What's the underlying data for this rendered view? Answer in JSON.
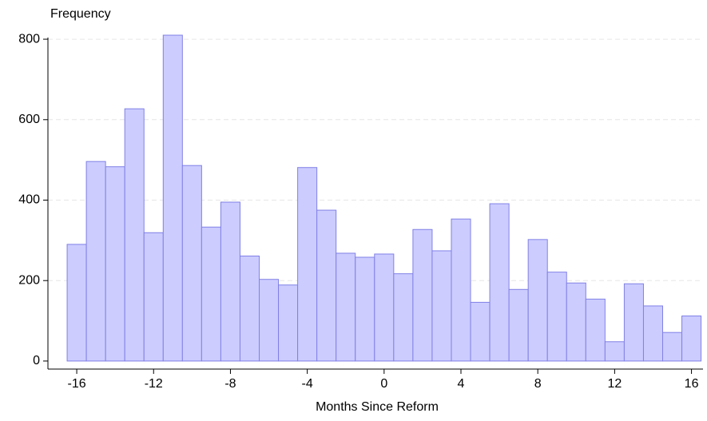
{
  "chart_data": {
    "type": "histogram",
    "ylabel": "Frequency",
    "xlabel": "Months Since Reform",
    "bins": [
      -16.5,
      -15.5,
      -14.5,
      -13.5,
      -12.5,
      -11.5,
      -10.5,
      -9.5,
      -8.5,
      -7.5,
      -6.5,
      -5.5,
      -4.5,
      -3.5,
      -2.5,
      -1.5,
      -0.5,
      0.5,
      1.5,
      2.5,
      3.5,
      4.5,
      5.5,
      6.5,
      7.5,
      8.5,
      9.5,
      10.5,
      11.5,
      12.5,
      13.5,
      14.5,
      15.5,
      16.5
    ],
    "values": [
      290,
      496,
      483,
      627,
      319,
      810,
      486,
      333,
      395,
      261,
      203,
      189,
      481,
      375,
      268,
      258,
      266,
      217,
      327,
      274,
      353,
      146,
      391,
      178,
      302,
      221,
      194,
      154,
      48,
      192,
      137,
      71,
      112
    ],
    "color": "#ccccff",
    "edgecolor": "#8080e6",
    "xlim": [
      -17.5,
      16.6
    ],
    "ylim": [
      -20,
      820
    ],
    "xticks": [
      -16,
      -12,
      -8,
      -4,
      0,
      4,
      8,
      12,
      16
    ],
    "yticks": [
      0,
      200,
      400,
      600,
      800
    ],
    "grid": true
  }
}
